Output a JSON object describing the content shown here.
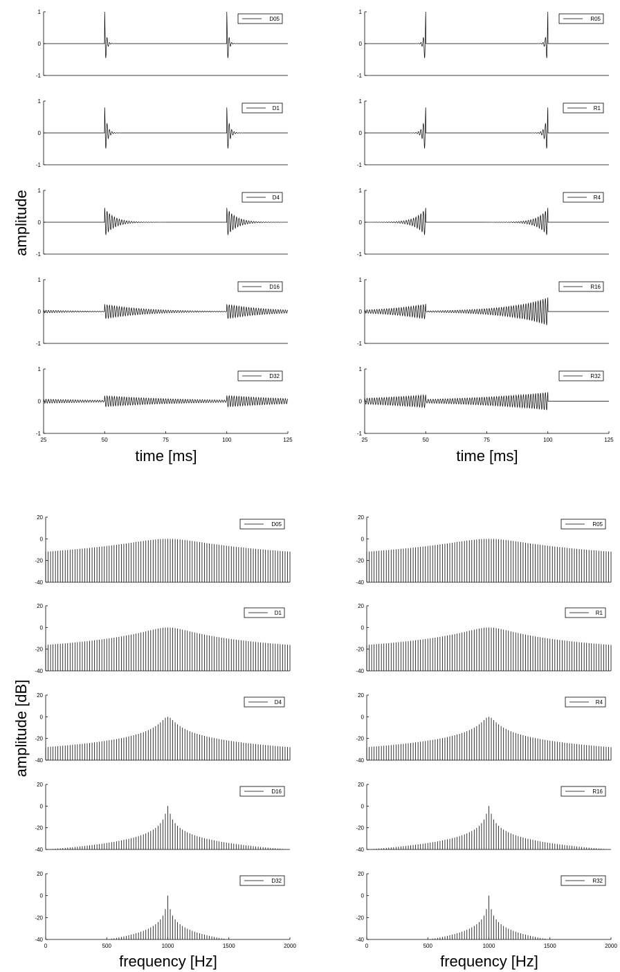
{
  "figure": {
    "top_xlabel": "time [ms]",
    "top_ylabel": "amplitude",
    "bottom_xlabel": "frequency [Hz]",
    "bottom_ylabel": "amplitude [dB]"
  },
  "colors": {
    "ink": "#000000",
    "axis": "#000000",
    "background": "#ffffff"
  },
  "chart_data": [
    {
      "type": "line",
      "panel": "time-D05",
      "legend": "D05",
      "xlabel": "",
      "ylabel": "",
      "xlim": [
        25,
        125
      ],
      "ylim": [
        -1,
        1
      ],
      "x_ticks": [],
      "y_ticks": [
        -1,
        0,
        1
      ],
      "signal": {
        "kind": "decay",
        "impulse_times_ms": [
          50,
          100
        ],
        "frequency_hz": 1000,
        "peak": 1.0,
        "decay_ms": 0.6,
        "noise_floor": 0.0
      }
    },
    {
      "type": "line",
      "panel": "time-D1",
      "legend": "D1",
      "xlabel": "",
      "ylabel": "",
      "xlim": [
        25,
        125
      ],
      "ylim": [
        -1,
        1
      ],
      "x_ticks": [],
      "y_ticks": [
        -1,
        0,
        1
      ],
      "signal": {
        "kind": "decay",
        "impulse_times_ms": [
          50,
          100
        ],
        "frequency_hz": 1000,
        "peak": 0.8,
        "decay_ms": 1.0,
        "noise_floor": 0.0
      }
    },
    {
      "type": "line",
      "panel": "time-D4",
      "legend": "D4",
      "xlabel": "",
      "ylabel": "",
      "xlim": [
        25,
        125
      ],
      "ylim": [
        -1,
        1
      ],
      "x_ticks": [],
      "y_ticks": [
        -1,
        0,
        1
      ],
      "signal": {
        "kind": "decay",
        "impulse_times_ms": [
          50,
          100
        ],
        "frequency_hz": 1000,
        "peak": 0.45,
        "decay_ms": 4.0,
        "noise_floor": 0.005
      }
    },
    {
      "type": "line",
      "panel": "time-D16",
      "legend": "D16",
      "xlabel": "",
      "ylabel": "",
      "xlim": [
        25,
        125
      ],
      "ylim": [
        -1,
        1
      ],
      "x_ticks": [],
      "y_ticks": [
        -1,
        0,
        1
      ],
      "signal": {
        "kind": "decay",
        "impulse_times_ms": [
          50,
          100
        ],
        "frequency_hz": 1000,
        "peak": 0.22,
        "decay_ms": 16.0,
        "noise_floor": 0.0
      }
    },
    {
      "type": "line",
      "panel": "time-D32",
      "legend": "D32",
      "xlabel": "time [ms]",
      "ylabel": "",
      "xlim": [
        25,
        125
      ],
      "ylim": [
        -1,
        1
      ],
      "x_ticks": [
        25,
        50,
        75,
        100,
        125
      ],
      "y_ticks": [
        -1,
        0,
        1
      ],
      "signal": {
        "kind": "decay",
        "impulse_times_ms": [
          50,
          100
        ],
        "frequency_hz": 1000,
        "peak": 0.14,
        "decay_ms": 32.0,
        "noise_floor": 0.0
      }
    },
    {
      "type": "line",
      "panel": "time-R05",
      "legend": "R05",
      "xlabel": "",
      "ylabel": "",
      "xlim": [
        25,
        125
      ],
      "ylim": [
        -1,
        1
      ],
      "x_ticks": [],
      "y_ticks": [
        -1,
        0,
        1
      ],
      "signal": {
        "kind": "rise",
        "impulse_times_ms": [
          50,
          100
        ],
        "frequency_hz": 1000,
        "peak": 1.0,
        "decay_ms": 0.6,
        "noise_floor": 0.0
      }
    },
    {
      "type": "line",
      "panel": "time-R1",
      "legend": "R1",
      "xlabel": "",
      "ylabel": "",
      "xlim": [
        25,
        125
      ],
      "ylim": [
        -1,
        1
      ],
      "x_ticks": [],
      "y_ticks": [
        -1,
        0,
        1
      ],
      "signal": {
        "kind": "rise",
        "impulse_times_ms": [
          50,
          100
        ],
        "frequency_hz": 1000,
        "peak": 0.8,
        "decay_ms": 1.0,
        "noise_floor": 0.0
      }
    },
    {
      "type": "line",
      "panel": "time-R4",
      "legend": "R4",
      "xlabel": "",
      "ylabel": "",
      "xlim": [
        25,
        125
      ],
      "ylim": [
        -1,
        1
      ],
      "x_ticks": [],
      "y_ticks": [
        -1,
        0,
        1
      ],
      "signal": {
        "kind": "rise",
        "impulse_times_ms": [
          50,
          100
        ],
        "frequency_hz": 1000,
        "peak": 0.45,
        "decay_ms": 4.0,
        "noise_floor": 0.005
      }
    },
    {
      "type": "line",
      "panel": "time-R16",
      "legend": "R16",
      "xlabel": "",
      "ylabel": "",
      "xlim": [
        25,
        125
      ],
      "ylim": [
        -1,
        1
      ],
      "x_ticks": [],
      "y_ticks": [
        -1,
        0,
        1
      ],
      "signal": {
        "kind": "rise",
        "impulse_times_ms": [
          50,
          100
        ],
        "frequency_hz": 1000,
        "peak": 0.22,
        "decay_ms": 16.0,
        "noise_floor": 0.0
      }
    },
    {
      "type": "line",
      "panel": "time-R32",
      "legend": "R32",
      "xlabel": "time [ms]",
      "ylabel": "",
      "xlim": [
        25,
        125
      ],
      "ylim": [
        -1,
        1
      ],
      "x_ticks": [
        25,
        50,
        75,
        100,
        125
      ],
      "y_ticks": [
        -1,
        0,
        1
      ],
      "signal": {
        "kind": "rise",
        "impulse_times_ms": [
          50,
          100
        ],
        "frequency_hz": 1000,
        "peak": 0.14,
        "decay_ms": 32.0,
        "noise_floor": 0.0
      }
    },
    {
      "type": "bar",
      "panel": "freq-D05",
      "legend": "D05",
      "xlabel": "",
      "ylabel": "",
      "xlim": [
        0,
        2000
      ],
      "ylim": [
        -40,
        20
      ],
      "x_ticks": [],
      "y_ticks": [
        -40,
        -20,
        0,
        20
      ],
      "spectrum": {
        "bin_spacing_hz": 20,
        "first_bin_hz": 0,
        "last_bin_hz": 2000,
        "center_hz": 1000,
        "peak_db": 0.0,
        "decay_ms": 0.6
      }
    },
    {
      "type": "bar",
      "panel": "freq-D1",
      "legend": "D1",
      "xlabel": "",
      "ylabel": "",
      "xlim": [
        0,
        2000
      ],
      "ylim": [
        -40,
        20
      ],
      "x_ticks": [],
      "y_ticks": [
        -40,
        -20,
        0,
        20
      ],
      "spectrum": {
        "bin_spacing_hz": 20,
        "first_bin_hz": 0,
        "last_bin_hz": 2000,
        "center_hz": 1000,
        "peak_db": 0.0,
        "decay_ms": 1.0
      }
    },
    {
      "type": "bar",
      "panel": "freq-D4",
      "legend": "D4",
      "xlabel": "",
      "ylabel": "",
      "xlim": [
        0,
        2000
      ],
      "ylim": [
        -40,
        20
      ],
      "x_ticks": [],
      "y_ticks": [
        -40,
        -20,
        0,
        20
      ],
      "spectrum": {
        "bin_spacing_hz": 20,
        "first_bin_hz": 0,
        "last_bin_hz": 2000,
        "center_hz": 1000,
        "peak_db": 0.0,
        "decay_ms": 4.0
      }
    },
    {
      "type": "bar",
      "panel": "freq-D16",
      "legend": "D16",
      "xlabel": "",
      "ylabel": "",
      "xlim": [
        0,
        2000
      ],
      "ylim": [
        -40,
        20
      ],
      "x_ticks": [],
      "y_ticks": [
        -40,
        -20,
        0,
        20
      ],
      "spectrum": {
        "bin_spacing_hz": 20,
        "first_bin_hz": 0,
        "last_bin_hz": 2000,
        "center_hz": 1000,
        "peak_db": 0.0,
        "decay_ms": 16.0
      }
    },
    {
      "type": "bar",
      "panel": "freq-D32",
      "legend": "D32",
      "xlabel": "frequency [Hz]",
      "ylabel": "",
      "xlim": [
        0,
        2000
      ],
      "ylim": [
        -40,
        20
      ],
      "x_ticks": [
        0,
        500,
        1000,
        1500,
        2000
      ],
      "y_ticks": [
        -40,
        -20,
        0,
        20
      ],
      "spectrum": {
        "bin_spacing_hz": 20,
        "first_bin_hz": 0,
        "last_bin_hz": 2000,
        "center_hz": 1000,
        "peak_db": 0.0,
        "decay_ms": 32.0
      }
    },
    {
      "type": "bar",
      "panel": "freq-R05",
      "legend": "R05",
      "xlabel": "",
      "ylabel": "",
      "xlim": [
        0,
        2000
      ],
      "ylim": [
        -40,
        20
      ],
      "x_ticks": [],
      "y_ticks": [
        -40,
        -20,
        0,
        20
      ],
      "spectrum": {
        "bin_spacing_hz": 20,
        "first_bin_hz": 0,
        "last_bin_hz": 2000,
        "center_hz": 1000,
        "peak_db": 0.0,
        "decay_ms": 0.6
      }
    },
    {
      "type": "bar",
      "panel": "freq-R1",
      "legend": "R1",
      "xlabel": "",
      "ylabel": "",
      "xlim": [
        0,
        2000
      ],
      "ylim": [
        -40,
        20
      ],
      "x_ticks": [],
      "y_ticks": [
        -40,
        -20,
        0,
        20
      ],
      "spectrum": {
        "bin_spacing_hz": 20,
        "first_bin_hz": 0,
        "last_bin_hz": 2000,
        "center_hz": 1000,
        "peak_db": 0.0,
        "decay_ms": 1.0
      }
    },
    {
      "type": "bar",
      "panel": "freq-R4",
      "legend": "R4",
      "xlabel": "",
      "ylabel": "",
      "xlim": [
        0,
        2000
      ],
      "ylim": [
        -40,
        20
      ],
      "x_ticks": [],
      "y_ticks": [
        -40,
        -20,
        0,
        20
      ],
      "spectrum": {
        "bin_spacing_hz": 20,
        "first_bin_hz": 0,
        "last_bin_hz": 2000,
        "center_hz": 1000,
        "peak_db": 0.0,
        "decay_ms": 4.0
      }
    },
    {
      "type": "bar",
      "panel": "freq-R16",
      "legend": "R16",
      "xlabel": "",
      "ylabel": "",
      "xlim": [
        0,
        2000
      ],
      "ylim": [
        -40,
        20
      ],
      "x_ticks": [],
      "y_ticks": [
        -40,
        -20,
        0,
        20
      ],
      "spectrum": {
        "bin_spacing_hz": 20,
        "first_bin_hz": 0,
        "last_bin_hz": 2000,
        "center_hz": 1000,
        "peak_db": 0.0,
        "decay_ms": 16.0
      }
    },
    {
      "type": "bar",
      "panel": "freq-R32",
      "legend": "R32",
      "xlabel": "frequency [Hz]",
      "ylabel": "",
      "xlim": [
        0,
        2000
      ],
      "ylim": [
        -40,
        20
      ],
      "x_ticks": [
        0,
        500,
        1000,
        1500,
        2000
      ],
      "y_ticks": [
        -40,
        -20,
        0,
        20
      ],
      "spectrum": {
        "bin_spacing_hz": 20,
        "first_bin_hz": 0,
        "last_bin_hz": 2000,
        "center_hz": 1000,
        "peak_db": 0.0,
        "decay_ms": 32.0
      }
    }
  ]
}
